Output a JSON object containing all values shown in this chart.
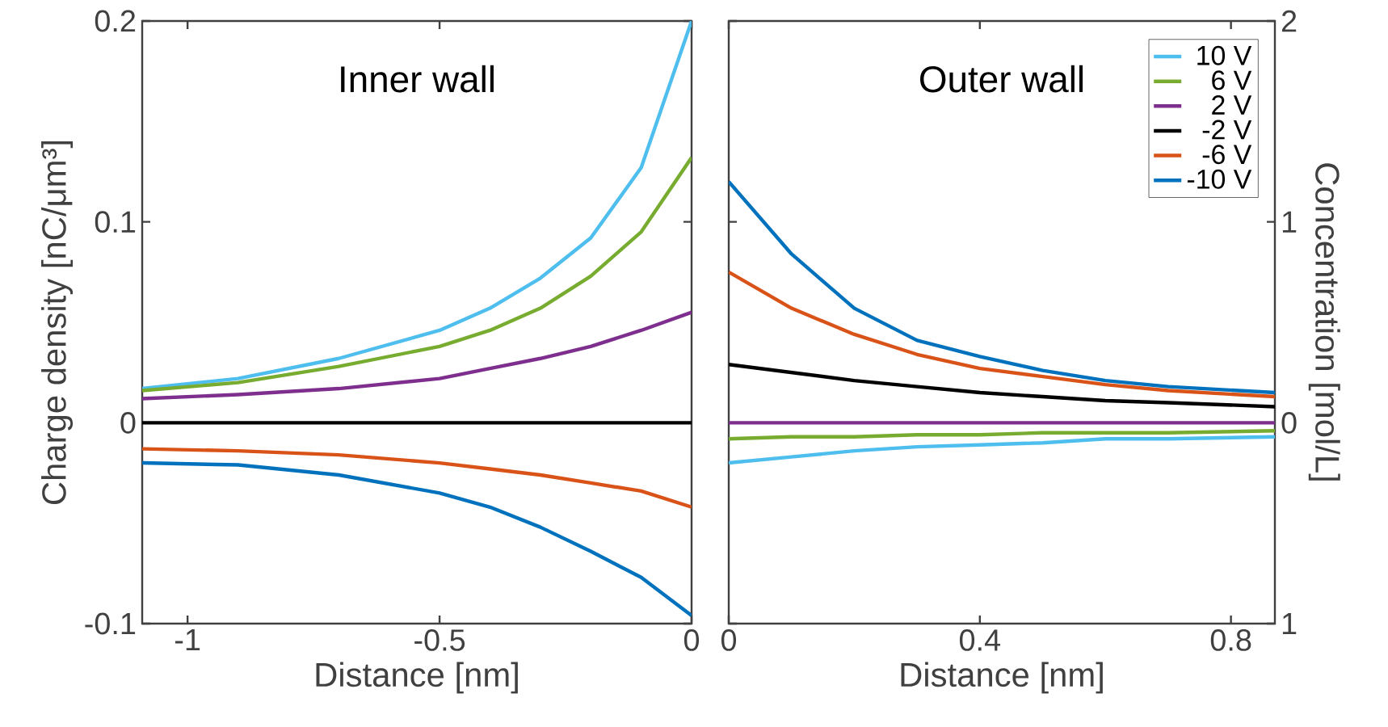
{
  "chart_data": [
    {
      "type": "line",
      "title": "Inner wall",
      "xlabel": "Distance [nm]",
      "ylabel": "Charge density [nC/μm³]",
      "x": [
        -1.09,
        -0.9,
        -0.7,
        -0.5,
        -0.4,
        -0.3,
        -0.2,
        -0.1,
        0
      ],
      "series": [
        {
          "color": "#4dbeee",
          "values": [
            0.017,
            0.022,
            0.032,
            0.046,
            0.057,
            0.072,
            0.092,
            0.127,
            0.2
          ]
        },
        {
          "color": "#77ac30",
          "values": [
            0.016,
            0.02,
            0.028,
            0.038,
            0.046,
            0.057,
            0.073,
            0.095,
            0.132
          ]
        },
        {
          "color": "#7e2f8e",
          "values": [
            0.012,
            0.014,
            0.017,
            0.022,
            0.027,
            0.032,
            0.038,
            0.046,
            0.055
          ]
        },
        {
          "color": "#000000",
          "values": [
            0,
            0,
            0,
            0,
            0,
            0,
            0,
            0,
            0
          ]
        },
        {
          "color": "#d95319",
          "values": [
            -0.013,
            -0.014,
            -0.016,
            -0.02,
            -0.023,
            -0.026,
            -0.03,
            -0.034,
            -0.042
          ]
        },
        {
          "color": "#0072bd",
          "values": [
            -0.02,
            -0.021,
            -0.026,
            -0.035,
            -0.042,
            -0.052,
            -0.064,
            -0.077,
            -0.096
          ]
        }
      ],
      "xlim": [
        -1.09,
        0
      ],
      "xticks": [
        -1,
        -0.5,
        0
      ],
      "ylim": [
        -0.1,
        0.2
      ],
      "yticks": [
        -0.1,
        0,
        0.1,
        0.2
      ],
      "marker": "none",
      "line_style": "solid"
    },
    {
      "type": "line",
      "title": "Outer wall",
      "xlabel": "Distance [nm]",
      "y2label": "Concentration [mol/L]",
      "x": [
        0,
        0.1,
        0.2,
        0.3,
        0.4,
        0.5,
        0.6,
        0.7,
        0.87
      ],
      "series": [
        {
          "name": "10 V",
          "axis": "y2",
          "color": "#4dbeee",
          "values": [
            -0.2,
            -0.17,
            -0.14,
            -0.12,
            -0.11,
            -0.1,
            -0.08,
            -0.08,
            -0.07
          ]
        },
        {
          "name": "6 V",
          "axis": "y2",
          "color": "#77ac30",
          "values": [
            -0.08,
            -0.07,
            -0.07,
            -0.06,
            -0.06,
            -0.05,
            -0.05,
            -0.05,
            -0.04
          ]
        },
        {
          "name": "2 V",
          "axis": "y2",
          "color": "#7e2f8e",
          "values": [
            0,
            0,
            0,
            0,
            0,
            0,
            0,
            0,
            0
          ]
        },
        {
          "name": "-2 V",
          "axis": "y2",
          "color": "#000000",
          "values": [
            0.29,
            0.25,
            0.21,
            0.18,
            0.15,
            0.13,
            0.11,
            0.1,
            0.08
          ]
        },
        {
          "name": "-6 V",
          "axis": "y2",
          "color": "#d95319",
          "values": [
            0.75,
            0.57,
            0.44,
            0.34,
            0.27,
            0.23,
            0.19,
            0.16,
            0.13
          ]
        },
        {
          "name": "-10 V",
          "axis": "y2",
          "color": "#0072bd",
          "values": [
            1.2,
            0.84,
            0.57,
            0.41,
            0.33,
            0.26,
            0.21,
            0.18,
            0.15
          ]
        }
      ],
      "xlim": [
        0,
        0.87
      ],
      "xticks": [
        0,
        0.4,
        0.8
      ],
      "y2lim": [
        -1,
        2
      ],
      "y2ticks": [
        {
          "value": -1,
          "label": "1"
        },
        0,
        1,
        2
      ],
      "legend": "top right",
      "marker": "none",
      "line_style": "solid"
    }
  ]
}
